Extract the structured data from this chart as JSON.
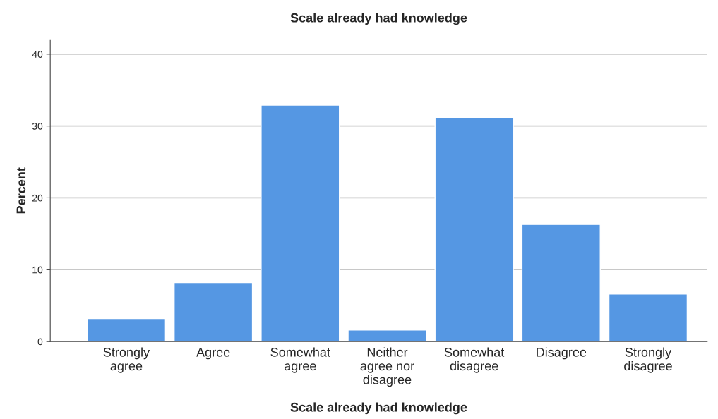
{
  "chart_data": {
    "type": "bar",
    "title": "Scale already had knowledge",
    "xlabel": "Scale already had knowledge",
    "ylabel": "Percent",
    "categories": [
      "Strongly\nagree",
      "Agree",
      "Somewhat\nagree",
      "Neither\nagree nor\ndisagree",
      "Somewhat\ndisagree",
      "Disagree",
      "Strongly\ndisagree"
    ],
    "values": [
      3.2,
      8.2,
      32.9,
      1.6,
      31.2,
      16.3,
      6.6
    ],
    "color": "#5597e3",
    "ylim": [
      0,
      42
    ],
    "yticks": [
      0,
      10,
      20,
      30,
      40
    ],
    "grid": "y"
  }
}
